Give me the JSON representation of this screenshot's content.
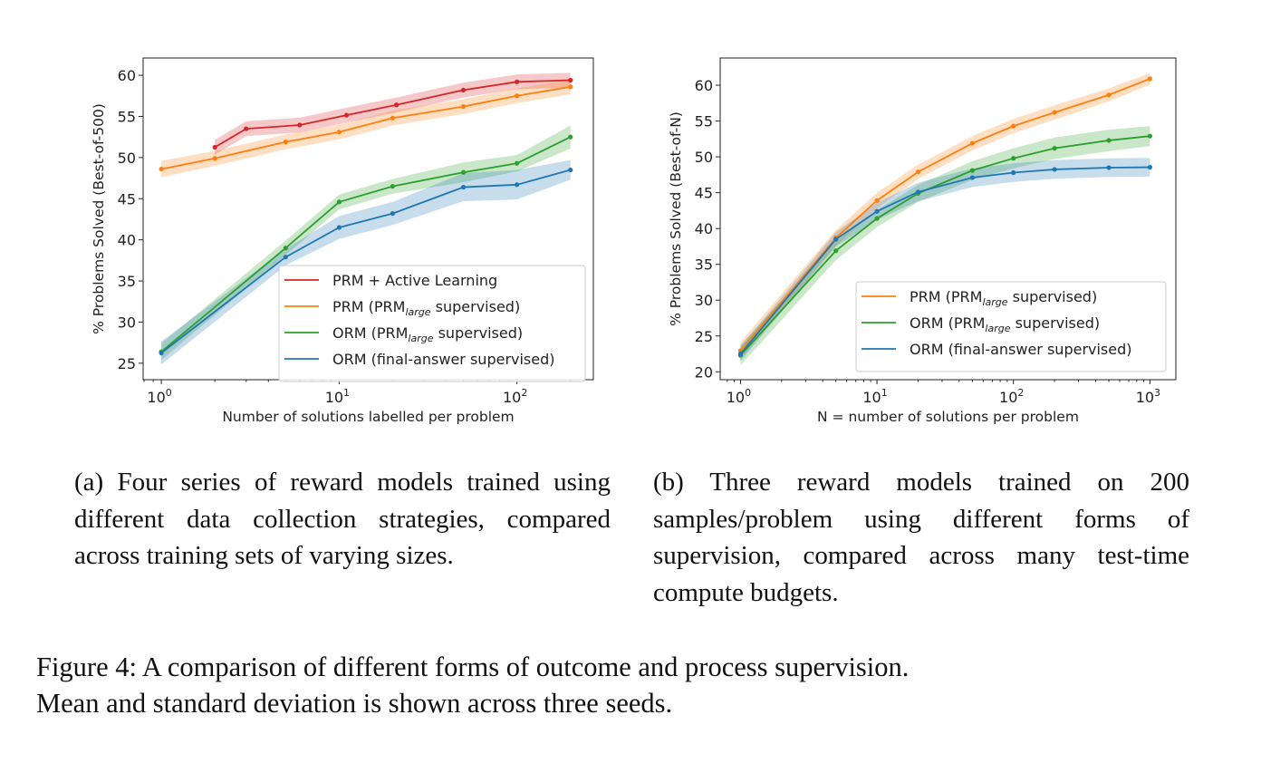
{
  "chart_data": [
    {
      "type": "line",
      "panel": "a",
      "xlabel": "Number of solutions labelled per problem",
      "ylabel": "% Problems Solved (Best-of-500)",
      "xscale": "log",
      "xlim": [
        0.79,
        269
      ],
      "ylim": [
        23.0,
        62.1
      ],
      "xticks": [
        1,
        10,
        100
      ],
      "xtick_labels": [
        "10^0",
        "10^1",
        "10^2"
      ],
      "yticks": [
        25,
        30,
        35,
        40,
        45,
        50,
        55,
        60
      ],
      "grid": false,
      "legend_position": "lower-right",
      "series": [
        {
          "name": "PRM + Active Learning",
          "color": "#d62728",
          "x": [
            2,
            3,
            6,
            11,
            21,
            50,
            100,
            200
          ],
          "y": [
            51.25,
            53.5,
            53.95,
            55.15,
            56.4,
            58.2,
            59.2,
            59.4
          ],
          "std": [
            0.9,
            0.9,
            0.9,
            0.9,
            0.9,
            0.9,
            0.9,
            0.9
          ]
        },
        {
          "name": "PRM (PRM_large supervised)",
          "color": "#ff7f0e",
          "x": [
            1,
            2,
            5,
            10,
            20,
            50,
            100,
            200
          ],
          "y": [
            48.6,
            49.9,
            51.9,
            53.1,
            54.8,
            56.2,
            57.5,
            58.6
          ],
          "std": [
            1.0,
            0.9,
            0.9,
            0.9,
            0.9,
            0.9,
            0.9,
            0.9
          ]
        },
        {
          "name": "ORM (PRM_large supervised)",
          "color": "#2ca02c",
          "x": [
            1,
            5,
            10,
            20,
            50,
            100,
            200
          ],
          "y": [
            26.4,
            39.0,
            44.6,
            46.5,
            48.2,
            49.3,
            52.5
          ],
          "std": [
            1.0,
            0.9,
            0.9,
            0.9,
            1.2,
            1.0,
            1.4
          ]
        },
        {
          "name": "ORM (final-answer supervised)",
          "color": "#1f77b4",
          "x": [
            1,
            5,
            10,
            20,
            50,
            100,
            200
          ],
          "y": [
            26.25,
            37.9,
            41.5,
            43.2,
            46.4,
            46.7,
            48.5
          ],
          "std": [
            1.4,
            1.0,
            1.4,
            1.4,
            1.7,
            1.8,
            1.2
          ]
        }
      ]
    },
    {
      "type": "line",
      "panel": "b",
      "xlabel": "N = number of solutions per problem",
      "ylabel": "% Problems Solved (Best-of-N)",
      "xscale": "log",
      "xlim": [
        0.71,
        1549
      ],
      "ylim": [
        18.9,
        63.8
      ],
      "xticks": [
        1,
        10,
        100,
        1000
      ],
      "xtick_labels": [
        "10^0",
        "10^1",
        "10^2",
        "10^3"
      ],
      "yticks": [
        20,
        25,
        30,
        35,
        40,
        45,
        50,
        55,
        60
      ],
      "grid": false,
      "legend_position": "lower-right",
      "series": [
        {
          "name": "PRM (PRM_large supervised)",
          "color": "#ff7f0e",
          "x": [
            1,
            5,
            10,
            20,
            50,
            100,
            200,
            500,
            1000
          ],
          "y": [
            22.95,
            38.7,
            43.9,
            47.9,
            51.9,
            54.3,
            56.2,
            58.65,
            60.9
          ],
          "std": [
            1.2,
            1.1,
            1.1,
            1.0,
            1.0,
            1.0,
            1.0,
            0.9,
            0.8
          ]
        },
        {
          "name": "ORM (PRM_large supervised)",
          "color": "#2ca02c",
          "x": [
            1,
            5,
            10,
            20,
            50,
            100,
            200,
            500,
            1000
          ],
          "y": [
            22.3,
            36.9,
            41.4,
            44.9,
            48.1,
            49.8,
            51.2,
            52.3,
            52.9
          ],
          "std": [
            1.4,
            1.3,
            1.2,
            1.2,
            1.3,
            1.4,
            1.5,
            1.5,
            1.4
          ]
        },
        {
          "name": "ORM (final-answer supervised)",
          "color": "#1f77b4",
          "x": [
            1,
            5,
            10,
            20,
            50,
            100,
            200,
            500,
            1000
          ],
          "y": [
            22.5,
            38.5,
            42.4,
            45.1,
            47.1,
            47.8,
            48.25,
            48.5,
            48.55
          ],
          "std": [
            1.0,
            1.0,
            1.2,
            1.3,
            1.3,
            1.3,
            1.3,
            1.3,
            1.3
          ]
        }
      ]
    }
  ],
  "captions": {
    "a": "(a) Four series of reward models trained using different data collection strategies, compared across training sets of varying sizes.",
    "b": "(b) Three reward models trained on 200 samples/problem using different forms of supervision, compared across many test-time compute budgets.",
    "figure_line1": "Figure 4: A comparison of different forms of outcome and process supervision.",
    "figure_line2": "Mean and standard deviation is shown across three seeds."
  }
}
